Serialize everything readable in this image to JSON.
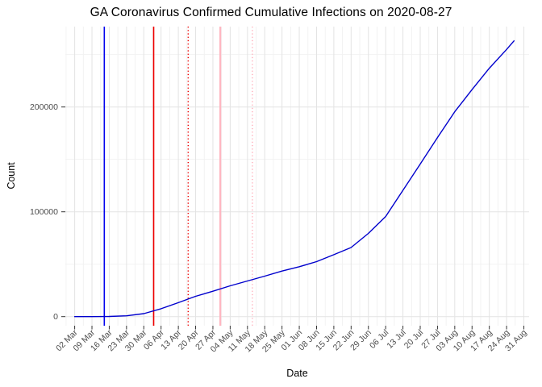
{
  "chart_data": {
    "type": "line",
    "title": "GA Coronavirus Confirmed Cumulative Infections on 2020-08-27",
    "xlabel": "Date",
    "ylabel": "Count",
    "legend": "none",
    "grid": "major+minor",
    "ylim": [
      0,
      276000
    ],
    "y_ticks": [
      {
        "value": 0,
        "label": "0"
      },
      {
        "value": 100000,
        "label": "100000"
      },
      {
        "value": 200000,
        "label": "200000"
      }
    ],
    "y_minor_ticks": [
      50000,
      150000,
      250000
    ],
    "x_ticks": [
      {
        "date": "2020-03-02",
        "label": "02 Mar"
      },
      {
        "date": "2020-03-09",
        "label": "09 Mar"
      },
      {
        "date": "2020-03-16",
        "label": "16 Mar"
      },
      {
        "date": "2020-03-23",
        "label": "23 Mar"
      },
      {
        "date": "2020-03-30",
        "label": "30 Mar"
      },
      {
        "date": "2020-04-06",
        "label": "06 Apr"
      },
      {
        "date": "2020-04-13",
        "label": "13 Apr"
      },
      {
        "date": "2020-04-20",
        "label": "20 Apr"
      },
      {
        "date": "2020-04-27",
        "label": "27 Apr"
      },
      {
        "date": "2020-05-04",
        "label": "04 May"
      },
      {
        "date": "2020-05-11",
        "label": "11 May"
      },
      {
        "date": "2020-05-18",
        "label": "18 May"
      },
      {
        "date": "2020-05-25",
        "label": "25 May"
      },
      {
        "date": "2020-06-01",
        "label": "01 Jun"
      },
      {
        "date": "2020-06-08",
        "label": "08 Jun"
      },
      {
        "date": "2020-06-15",
        "label": "15 Jun"
      },
      {
        "date": "2020-06-22",
        "label": "22 Jun"
      },
      {
        "date": "2020-06-29",
        "label": "29 Jun"
      },
      {
        "date": "2020-07-06",
        "label": "06 Jul"
      },
      {
        "date": "2020-07-13",
        "label": "13 Jul"
      },
      {
        "date": "2020-07-20",
        "label": "20 Jul"
      },
      {
        "date": "2020-07-27",
        "label": "27 Jul"
      },
      {
        "date": "2020-08-03",
        "label": "03 Aug"
      },
      {
        "date": "2020-08-10",
        "label": "10 Aug"
      },
      {
        "date": "2020-08-17",
        "label": "17 Aug"
      },
      {
        "date": "2020-08-24",
        "label": "24 Aug"
      },
      {
        "date": "2020-08-31",
        "label": "31 Aug"
      }
    ],
    "series": [
      {
        "name": "confirmed-cumulative-infections",
        "color": "#0000CD",
        "points": [
          {
            "date": "2020-03-02",
            "value": 2
          },
          {
            "date": "2020-03-09",
            "value": 17
          },
          {
            "date": "2020-03-16",
            "value": 121
          },
          {
            "date": "2020-03-23",
            "value": 772
          },
          {
            "date": "2020-03-30",
            "value": 2809
          },
          {
            "date": "2020-04-06",
            "value": 7559
          },
          {
            "date": "2020-04-13",
            "value": 13315
          },
          {
            "date": "2020-04-20",
            "value": 19398
          },
          {
            "date": "2020-04-27",
            "value": 24225
          },
          {
            "date": "2020-05-04",
            "value": 29368
          },
          {
            "date": "2020-05-11",
            "value": 34002
          },
          {
            "date": "2020-05-18",
            "value": 38624
          },
          {
            "date": "2020-05-25",
            "value": 43444
          },
          {
            "date": "2020-06-01",
            "value": 47618
          },
          {
            "date": "2020-06-08",
            "value": 52497
          },
          {
            "date": "2020-06-15",
            "value": 59078
          },
          {
            "date": "2020-06-22",
            "value": 65928
          },
          {
            "date": "2020-06-29",
            "value": 79417
          },
          {
            "date": "2020-07-06",
            "value": 95516
          },
          {
            "date": "2020-07-13",
            "value": 120569
          },
          {
            "date": "2020-07-20",
            "value": 145575
          },
          {
            "date": "2020-07-27",
            "value": 170843
          },
          {
            "date": "2020-08-03",
            "value": 195435
          },
          {
            "date": "2020-08-10",
            "value": 216596
          },
          {
            "date": "2020-08-17",
            "value": 236981
          },
          {
            "date": "2020-08-24",
            "value": 254912
          },
          {
            "date": "2020-08-27",
            "value": 263074
          }
        ]
      }
    ],
    "vlines": [
      {
        "name": "vline-blue-solid",
        "date": "2020-03-14",
        "color": "#0000EE",
        "style": "solid",
        "width": 1.6
      },
      {
        "name": "vline-red-solid",
        "date": "2020-04-03",
        "color": "#EE0000",
        "style": "solid",
        "width": 1.6
      },
      {
        "name": "vline-red-dotted",
        "date": "2020-04-17",
        "color": "#EE0000",
        "style": "dotted",
        "width": 1.5
      },
      {
        "name": "vline-pink-solid",
        "date": "2020-04-30",
        "color": "#FFB6C1",
        "style": "solid",
        "width": 2.2
      },
      {
        "name": "vline-pink-dotted",
        "date": "2020-05-13",
        "color": "#FFB6C1",
        "style": "dotted",
        "width": 1.6
      }
    ],
    "colors": {
      "background": "#FFFFFF",
      "grid_major": "#E3E3E3",
      "grid_minor": "#F1F1F1",
      "tick_mark": "#333333",
      "tick_label": "#4D4D4D",
      "text": "#000000"
    }
  }
}
